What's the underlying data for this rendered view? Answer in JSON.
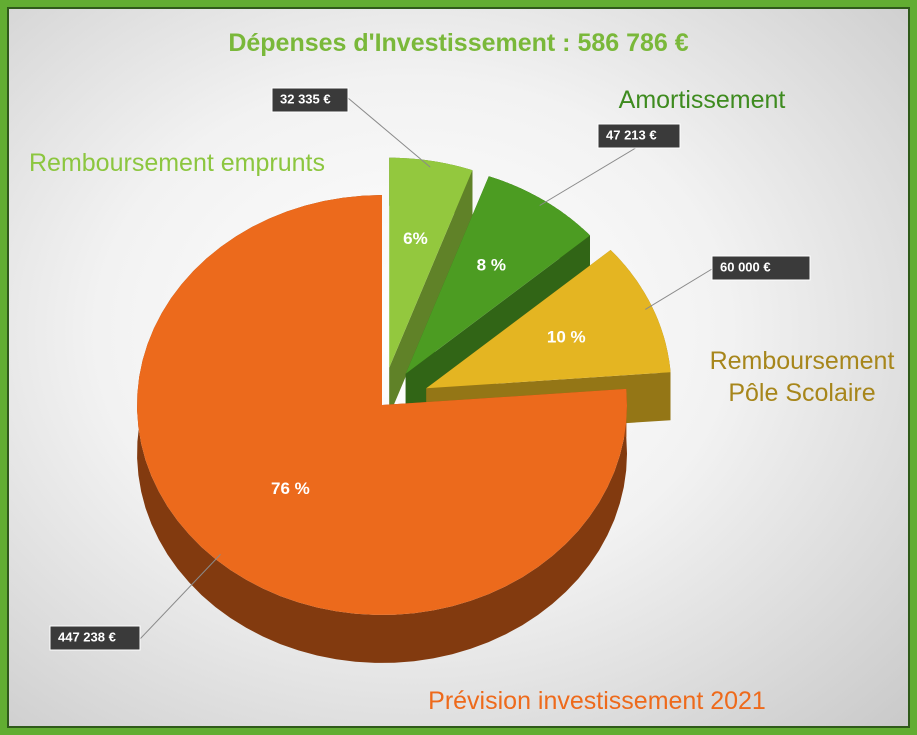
{
  "chart_data": {
    "type": "pie3d",
    "title": "Dépenses d'Investissement : 586 786 €",
    "categories": [
      "Remboursement emprunts",
      "Amortissement",
      "Remboursement Pôle Scolaire",
      "Prévision investissement 2021"
    ],
    "values": [
      32335,
      47213,
      60000,
      447238
    ],
    "value_labels": [
      "32 335 €",
      "47 213 €",
      "60 000 €",
      "447 238 €"
    ],
    "percent_labels": [
      "6%",
      "8 %",
      "10 %",
      "76 %"
    ],
    "colors": [
      "#93c83e",
      "#4c9c22",
      "#e4b522",
      "#ec6a1c"
    ],
    "label_colors": [
      "#8cc63f",
      "#3e8b1f",
      "#a7861b",
      "#ee6a1b"
    ]
  }
}
